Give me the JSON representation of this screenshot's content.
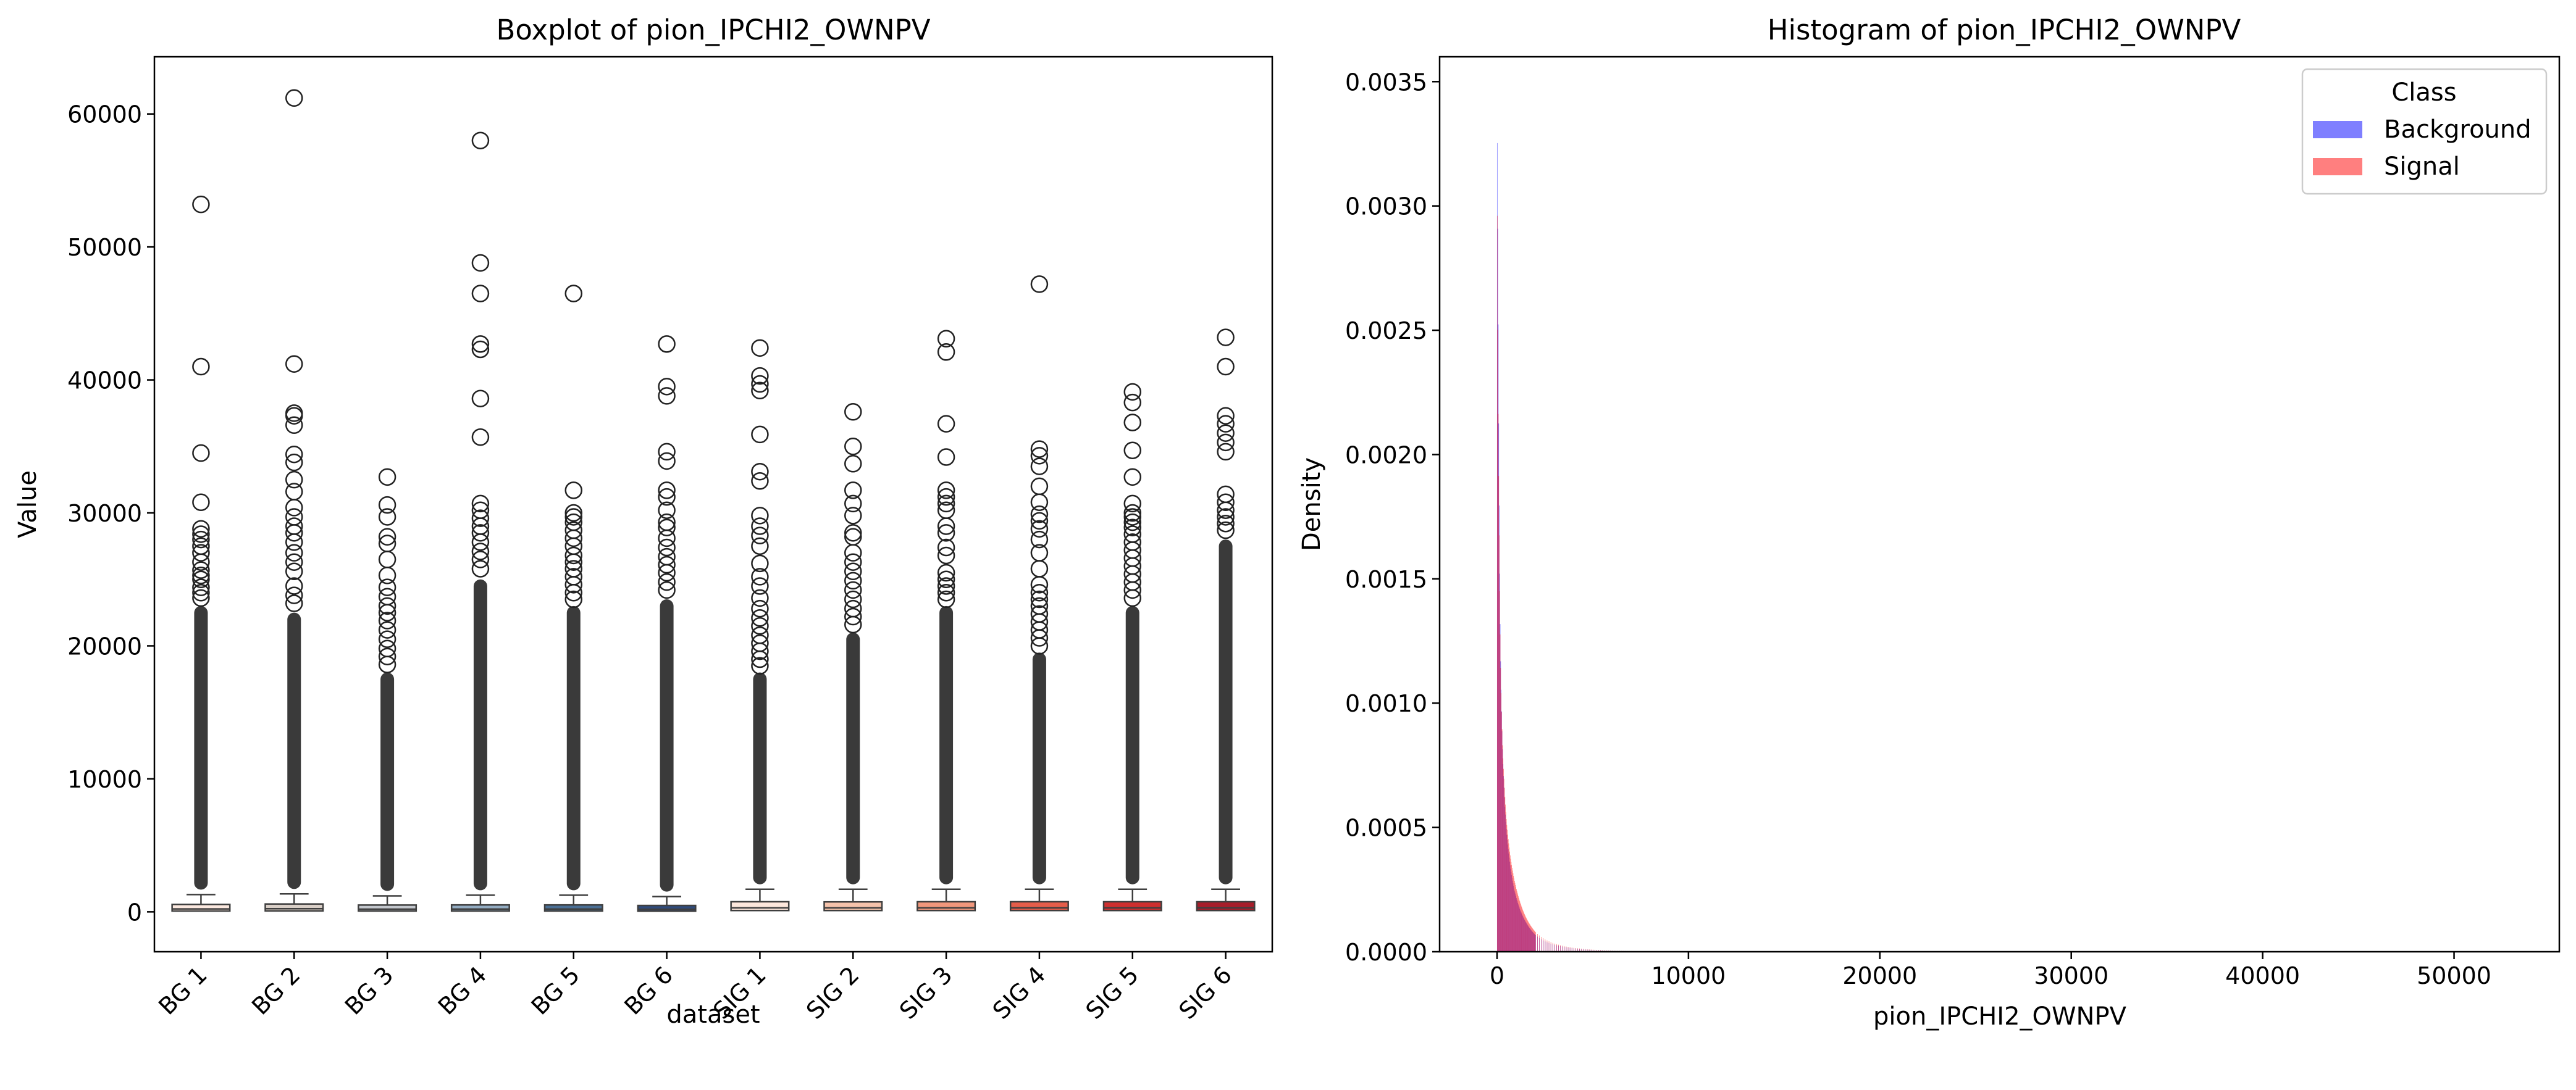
{
  "chart_data": [
    {
      "type": "box",
      "title": "Boxplot of pion_IPCHI2_OWNPV",
      "xlabel": "dataset",
      "ylabel": "Value",
      "ylim": [
        -3000,
        64300
      ],
      "yticks": [
        0,
        10000,
        20000,
        30000,
        40000,
        50000,
        60000
      ],
      "ytick_labels": [
        "0",
        "10000",
        "20000",
        "30000",
        "40000",
        "50000",
        "60000"
      ],
      "categories": [
        "BG 1",
        "BG 2",
        "BG 3",
        "BG 4",
        "BG 5",
        "BG 6",
        "SIG 1",
        "SIG 2",
        "SIG 3",
        "SIG 4",
        "SIG 5",
        "SIG 6"
      ],
      "colors": [
        "#fce9e0",
        "#d9cfc7",
        "#c3c7cd",
        "#93acc2",
        "#4a6f95",
        "#2f4b7c",
        "#fde7dc",
        "#f6c3ab",
        "#f1977c",
        "#e65d4a",
        "#cf2e2e",
        "#a71d2a"
      ],
      "series": [
        {
          "name": "BG 1",
          "q1": 60,
          "median": 220,
          "q3": 560,
          "whisker_high": 1300,
          "dense_outlier_max": 23000,
          "outliers": [
            53200,
            41000,
            34500,
            30800,
            28800,
            28400,
            28000,
            27500,
            27000,
            26300,
            25700,
            25300,
            25000,
            24400,
            24000,
            23600
          ]
        },
        {
          "name": "BG 2",
          "q1": 70,
          "median": 240,
          "q3": 590,
          "whisker_high": 1350,
          "dense_outlier_max": 22500,
          "outliers": [
            61200,
            41200,
            37500,
            37300,
            36600,
            34400,
            33800,
            32500,
            31600,
            30400,
            29700,
            29000,
            28500,
            27800,
            27000,
            26300,
            25600,
            24500,
            23800,
            23200
          ]
        },
        {
          "name": "BG 3",
          "q1": 60,
          "median": 200,
          "q3": 510,
          "whisker_high": 1200,
          "dense_outlier_max": 18000,
          "outliers": [
            32700,
            30600,
            29700,
            28200,
            27700,
            26500,
            25300,
            24400,
            23700,
            23000,
            22500,
            21900,
            21200,
            20500,
            19800,
            19200,
            18600
          ]
        },
        {
          "name": "BG 4",
          "q1": 60,
          "median": 210,
          "q3": 520,
          "whisker_high": 1250,
          "dense_outlier_max": 25000,
          "outliers": [
            58000,
            48800,
            46500,
            42700,
            42300,
            38600,
            35700,
            30700,
            30200,
            29600,
            29000,
            28500,
            27800,
            27100,
            26500,
            25800
          ]
        },
        {
          "name": "BG 5",
          "q1": 60,
          "median": 210,
          "q3": 520,
          "whisker_high": 1250,
          "dense_outlier_max": 23000,
          "outliers": [
            46500,
            31700,
            30000,
            29700,
            29300,
            28700,
            28100,
            27500,
            26800,
            26300,
            25800,
            25200,
            24600,
            24000,
            23500
          ]
        },
        {
          "name": "BG 6",
          "q1": 50,
          "median": 190,
          "q3": 480,
          "whisker_high": 1150,
          "dense_outlier_max": 23500,
          "outliers": [
            42700,
            39500,
            38800,
            34600,
            33900,
            31700,
            31200,
            30200,
            29300,
            28900,
            28100,
            27400,
            26700,
            26100,
            25500,
            24800,
            24200
          ]
        },
        {
          "name": "SIG 1",
          "q1": 100,
          "median": 300,
          "q3": 760,
          "whisker_high": 1700,
          "dense_outlier_max": 18000,
          "outliers": [
            42400,
            40300,
            39700,
            39200,
            35900,
            33100,
            32400,
            29800,
            29000,
            28300,
            27500,
            26200,
            25200,
            24500,
            23600,
            22800,
            22100,
            21500,
            20800,
            20200,
            19600,
            19000,
            18500
          ]
        },
        {
          "name": "SIG 2",
          "q1": 100,
          "median": 300,
          "q3": 750,
          "whisker_high": 1700,
          "dense_outlier_max": 21000,
          "outliers": [
            37600,
            35000,
            33700,
            31700,
            30700,
            29800,
            28500,
            28200,
            27000,
            26300,
            25600,
            24900,
            24200,
            23500,
            22800,
            22200,
            21600
          ]
        },
        {
          "name": "SIG 3",
          "q1": 100,
          "median": 300,
          "q3": 760,
          "whisker_high": 1700,
          "dense_outlier_max": 23000,
          "outliers": [
            43100,
            42100,
            36700,
            34200,
            31700,
            31200,
            30700,
            30200,
            29000,
            28500,
            27400,
            26800,
            25500,
            25000,
            24500,
            24000,
            23500
          ]
        },
        {
          "name": "SIG 4",
          "q1": 100,
          "median": 300,
          "q3": 760,
          "whisker_high": 1700,
          "dense_outlier_max": 19500,
          "outliers": [
            47200,
            34800,
            34300,
            33500,
            32000,
            30800,
            29900,
            29400,
            28800,
            28000,
            27000,
            25800,
            24600,
            24000,
            23500,
            23000,
            22400,
            21800,
            21200,
            20600,
            20000
          ]
        },
        {
          "name": "SIG 5",
          "q1": 100,
          "median": 300,
          "q3": 760,
          "whisker_high": 1700,
          "dense_outlier_max": 23000,
          "outliers": [
            39100,
            38300,
            36800,
            34700,
            32700,
            30700,
            30000,
            29700,
            29300,
            28900,
            28400,
            27800,
            27200,
            26600,
            26000,
            25400,
            24800,
            24200,
            23600
          ]
        },
        {
          "name": "SIG 6",
          "q1": 100,
          "median": 300,
          "q3": 760,
          "whisker_high": 1700,
          "dense_outlier_max": 28000,
          "outliers": [
            43200,
            41000,
            37300,
            36700,
            36000,
            35300,
            34600,
            31400,
            30800,
            30200,
            29700,
            29200,
            28700
          ]
        }
      ]
    },
    {
      "type": "histogram",
      "title": "Histogram of pion_IPCHI2_OWNPV",
      "xlabel": "pion_IPCHI2_OWNPV",
      "ylabel": "Density",
      "xlim": [
        -3000,
        55500
      ],
      "ylim": [
        0,
        0.0036
      ],
      "xticks": [
        0,
        10000,
        20000,
        30000,
        40000,
        50000
      ],
      "xtick_labels": [
        "0",
        "10000",
        "20000",
        "30000",
        "40000",
        "50000"
      ],
      "yticks": [
        0,
        0.0005,
        0.001,
        0.0015,
        0.002,
        0.0025,
        0.003,
        0.0035
      ],
      "ytick_labels": [
        "0.0000",
        "0.0005",
        "0.0010",
        "0.0015",
        "0.0020",
        "0.0025",
        "0.0030",
        "0.0035"
      ],
      "legend": {
        "title": "Class",
        "placement": "top-right",
        "entries": [
          "Background",
          "Signal"
        ]
      },
      "series": [
        {
          "name": "Background",
          "color": "#0000ff",
          "opacity": 0.5,
          "x": [
            0,
            50,
            100,
            150,
            200,
            300,
            400,
            500,
            700,
            900,
            1200,
            1500,
            2000,
            2500,
            3000,
            4000,
            5000,
            6000,
            8000,
            10000,
            15000,
            20000
          ],
          "density": [
            0.00344,
            0.00275,
            0.00195,
            0.0014,
            0.0011,
            0.00078,
            0.0006,
            0.00048,
            0.00034,
            0.00025,
            0.00017,
            0.00012,
            6.8e-05,
            4.2e-05,
            2.8e-05,
            1.4e-05,
            7.5e-06,
            4e-06,
            1.5e-06,
            6e-07,
            1e-07,
            2e-08
          ]
        },
        {
          "name": "Signal",
          "color": "#ff0000",
          "opacity": 0.5,
          "x": [
            0,
            50,
            100,
            150,
            200,
            300,
            400,
            500,
            700,
            900,
            1200,
            1500,
            2000,
            2500,
            3000,
            4000,
            5000,
            6000,
            8000,
            10000,
            15000,
            20000
          ],
          "density": [
            0.00322,
            0.0023,
            0.0018,
            0.00135,
            0.00108,
            0.0008,
            0.00064,
            0.00052,
            0.00038,
            0.00029,
            0.0002,
            0.00014,
            8e-05,
            5e-05,
            3.3e-05,
            1.6e-05,
            8.5e-06,
            4.5e-06,
            1.7e-06,
            7e-07,
            1e-07,
            2e-08
          ]
        }
      ]
    }
  ]
}
